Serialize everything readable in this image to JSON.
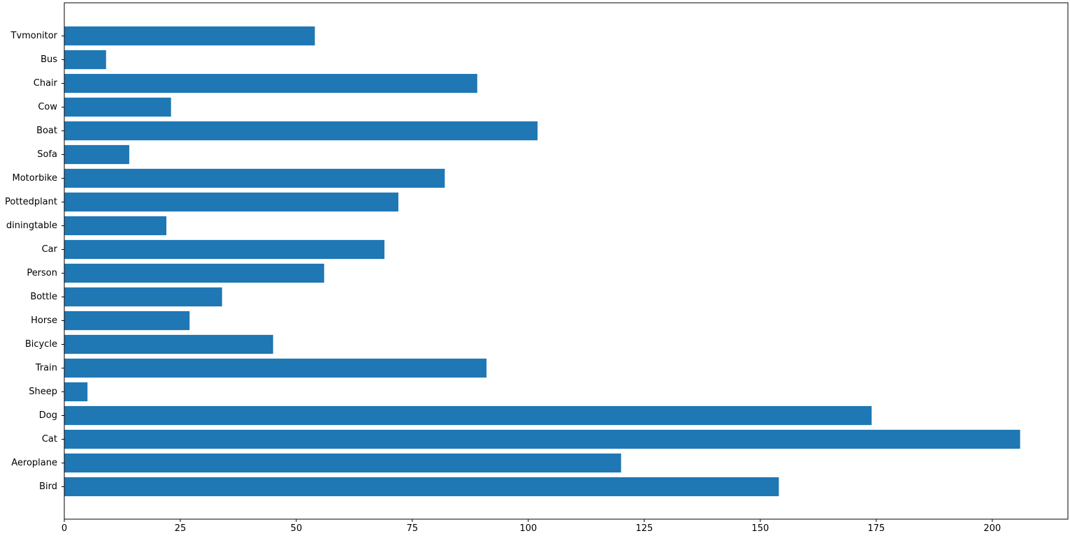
{
  "chart_data": {
    "type": "bar",
    "orientation": "horizontal",
    "categories": [
      "Bird",
      "Aeroplane",
      "Cat",
      "Dog",
      "Sheep",
      "Train",
      "Bicycle",
      "Horse",
      "Bottle",
      "Person",
      "Car",
      "diningtable",
      "Pottedplant",
      "Motorbike",
      "Sofa",
      "Boat",
      "Cow",
      "Chair",
      "Bus",
      "Tvmonitor"
    ],
    "values": [
      154,
      120,
      206,
      174,
      5,
      91,
      45,
      27,
      34,
      56,
      69,
      22,
      72,
      82,
      14,
      102,
      23,
      89,
      9,
      54
    ],
    "xticks": [
      0,
      25,
      50,
      75,
      100,
      125,
      150,
      175,
      200
    ],
    "xlim": [
      0,
      216.3
    ],
    "title": "",
    "xlabel": "",
    "ylabel": "",
    "grid": false,
    "bar_color": "#1f77b4"
  }
}
